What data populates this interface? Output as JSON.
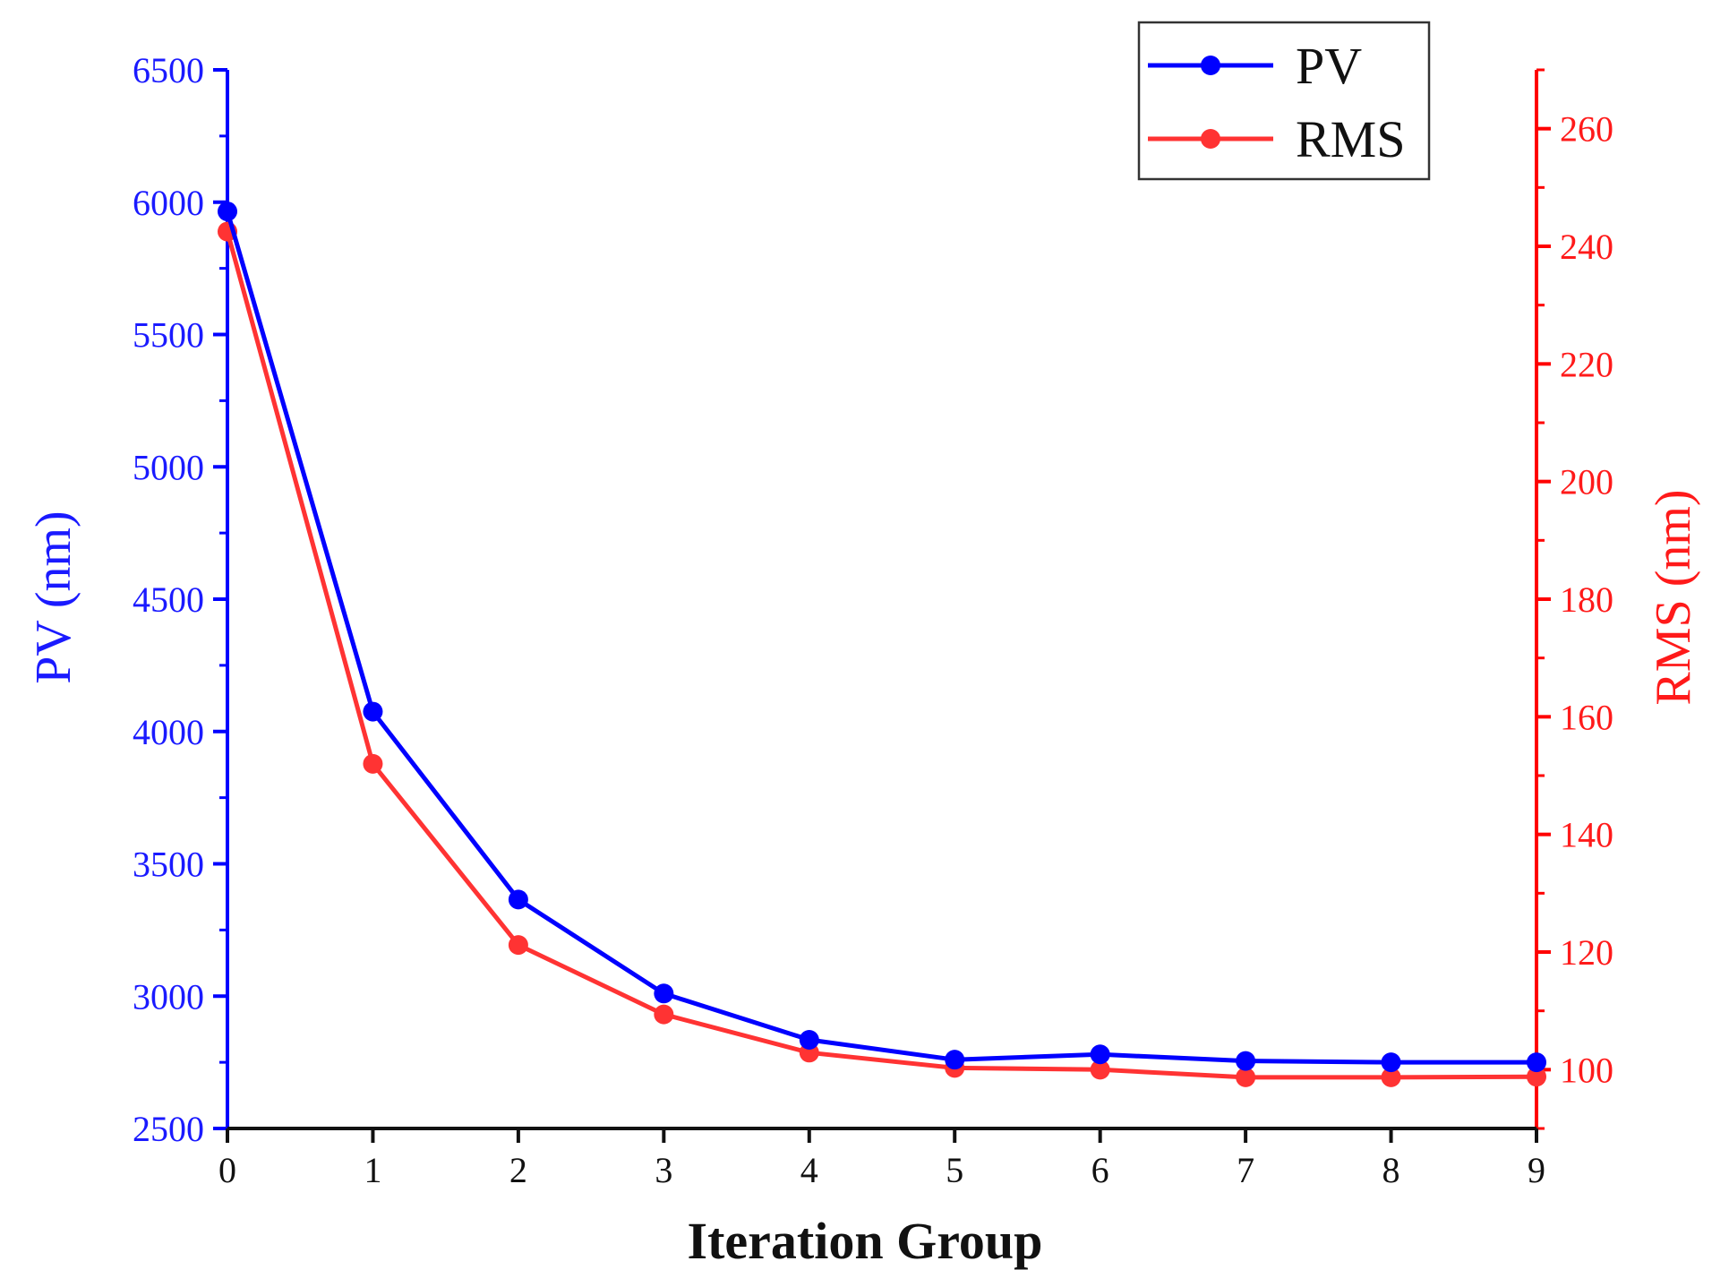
{
  "chart_data": {
    "type": "line",
    "x": [
      0,
      1,
      2,
      3,
      4,
      5,
      6,
      7,
      8,
      9
    ],
    "xlabel": "Iteration Group",
    "xlim": [
      0,
      9
    ],
    "x_ticks": [
      "0",
      "1",
      "2",
      "3",
      "4",
      "5",
      "6",
      "7",
      "8",
      "9"
    ],
    "y_left": {
      "label": "PV (nm)",
      "range": [
        2500,
        6500
      ],
      "ticks": [
        "2500",
        "3000",
        "3500",
        "4000",
        "4500",
        "5000",
        "5500",
        "6000",
        "6500"
      ],
      "color": "#1a1aff"
    },
    "y_right": {
      "label": "RMS (nm)",
      "range": [
        90,
        270
      ],
      "ticks": [
        "100",
        "120",
        "140",
        "160",
        "180",
        "200",
        "220",
        "240",
        "260"
      ],
      "color": "#ff1a1a"
    },
    "series": [
      {
        "name": "PV",
        "axis": "left",
        "color": "#0000ff",
        "values": [
          5965,
          4075,
          3365,
          3010,
          2835,
          2760,
          2780,
          2755,
          2750,
          2750
        ]
      },
      {
        "name": "RMS",
        "axis": "right",
        "color": "#ff3333",
        "values": [
          242.5,
          152.0,
          121.2,
          109.4,
          102.9,
          100.3,
          100.0,
          98.7,
          98.7,
          98.8
        ]
      }
    ],
    "legend": {
      "position": "top-right",
      "entries": [
        "PV",
        "RMS"
      ]
    },
    "grid": false
  }
}
